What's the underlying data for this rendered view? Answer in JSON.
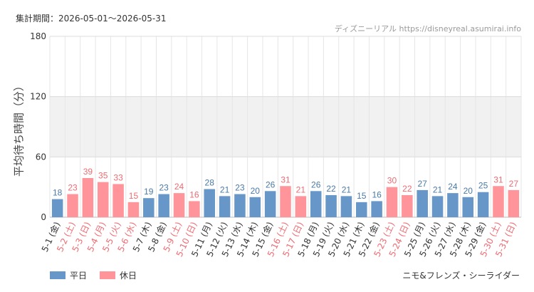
{
  "header": {
    "period": "集計期間：2026-05-01〜2026-05-31",
    "credit": "ディズニーリアル https://disneyreal.asumirai.info"
  },
  "colors": {
    "weekday": "#6796c8",
    "holiday": "#ff959a",
    "weekday_label": "#4a7aa8",
    "holiday_label": "#ee6b72",
    "band": "#f1f1f1",
    "grid": "#e6e6e6"
  },
  "legend": {
    "weekday": "平日",
    "holiday": "休日"
  },
  "attraction": "ニモ&フレンズ・シーライダー",
  "chart_data": {
    "type": "bar",
    "ylabel": "平均待ち時間（分）",
    "ylim": [
      0,
      180
    ],
    "yticks": [
      0,
      60,
      120,
      180
    ],
    "highlight_band": [
      60,
      120
    ],
    "categories": [
      "5-1 (金)",
      "5-2 (土)",
      "5-3 (日)",
      "5-4 (月)",
      "5-5 (火)",
      "5-6 (水)",
      "5-7 (木)",
      "5-8 (金)",
      "5-9 (土)",
      "5-10 (日)",
      "5-11 (月)",
      "5-12 (火)",
      "5-13 (水)",
      "5-14 (木)",
      "5-15 (金)",
      "5-16 (土)",
      "5-17 (日)",
      "5-18 (月)",
      "5-19 (火)",
      "5-20 (水)",
      "5-21 (木)",
      "5-22 (金)",
      "5-23 (土)",
      "5-24 (日)",
      "5-25 (月)",
      "5-26 (火)",
      "5-27 (水)",
      "5-28 (木)",
      "5-29 (金)",
      "5-30 (土)",
      "5-31 (日)"
    ],
    "values": [
      18,
      23,
      39,
      35,
      33,
      15,
      19,
      23,
      24,
      16,
      28,
      21,
      23,
      20,
      26,
      31,
      21,
      26,
      22,
      21,
      15,
      16,
      30,
      22,
      27,
      21,
      24,
      20,
      25,
      31,
      27
    ],
    "day_type": [
      "平日",
      "休日",
      "休日",
      "休日",
      "休日",
      "休日",
      "平日",
      "平日",
      "休日",
      "休日",
      "平日",
      "平日",
      "平日",
      "平日",
      "平日",
      "休日",
      "休日",
      "平日",
      "平日",
      "平日",
      "平日",
      "平日",
      "休日",
      "休日",
      "平日",
      "平日",
      "平日",
      "平日",
      "平日",
      "休日",
      "休日"
    ]
  }
}
